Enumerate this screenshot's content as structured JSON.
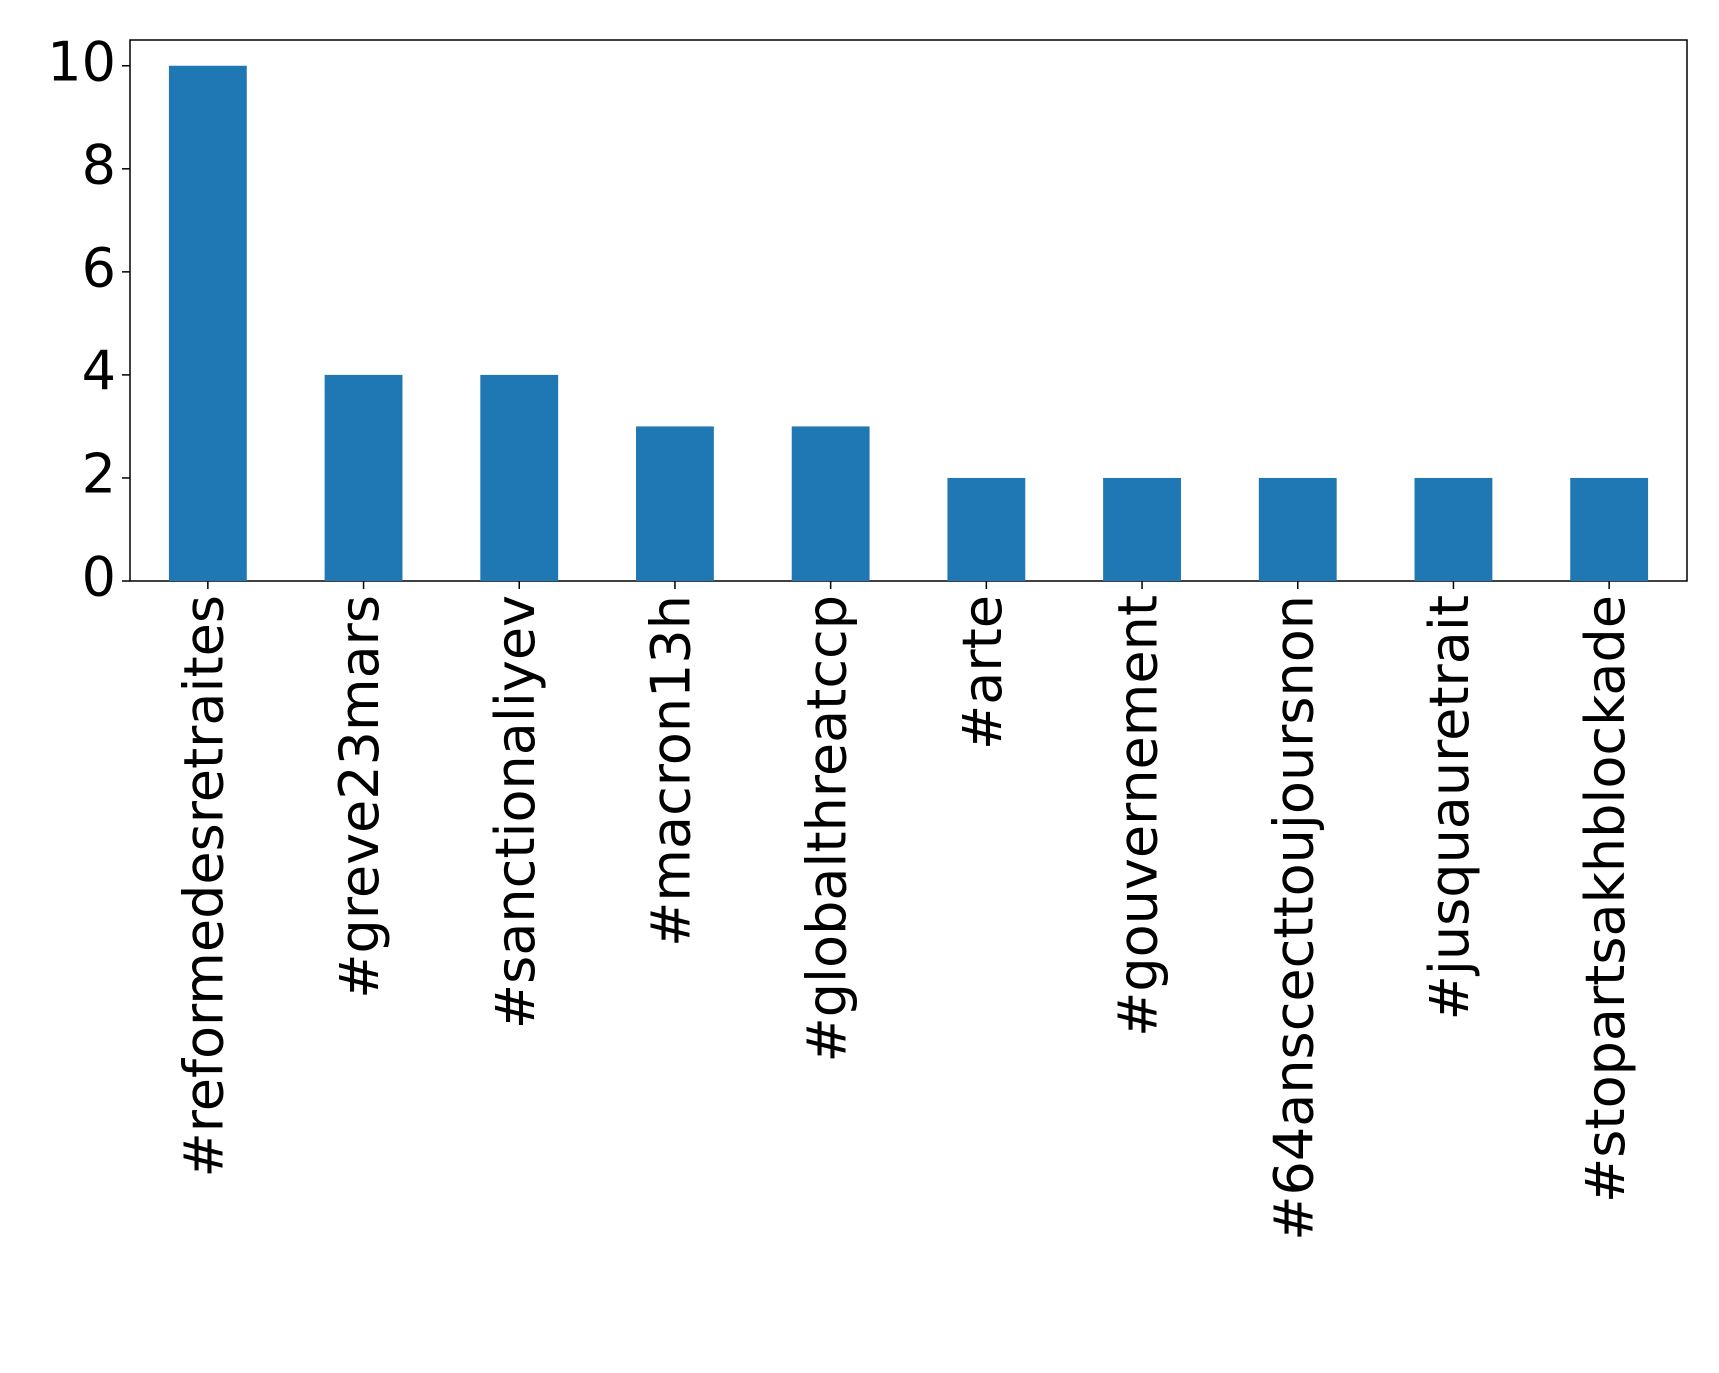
{
  "chart_data": {
    "type": "bar",
    "categories": [
      "#reformedesretraites",
      "#greve23mars",
      "#sanctionaliyev",
      "#macron13h",
      "#globalthreatccp",
      "#arte",
      "#gouvernement",
      "#64ansceсttoujoursnon",
      "#jusquauretrait",
      "#stopartsakhblockade"
    ],
    "values": [
      10,
      4,
      4,
      3,
      3,
      2,
      2,
      2,
      2,
      2
    ],
    "color": "#1f77b4",
    "ylim": [
      0,
      10.5
    ],
    "yticks": [
      0,
      2,
      4,
      6,
      8,
      10
    ],
    "grid": false
  }
}
